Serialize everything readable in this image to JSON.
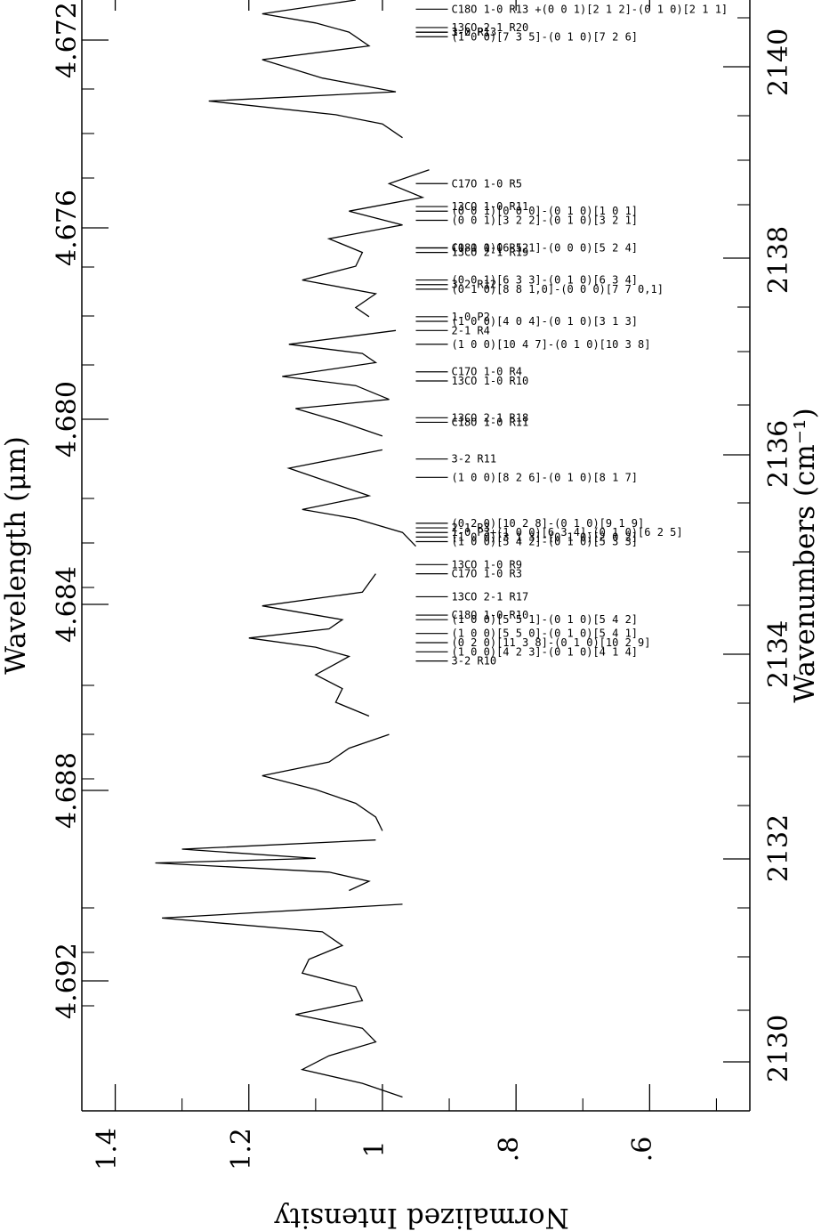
{
  "chart_data": {
    "type": "line",
    "orientation": "rotated-90",
    "title": "",
    "axes": {
      "wavelength": {
        "title": "Wavelength (μm)",
        "ticks": [
          "4.672",
          "4.676",
          "4.680",
          "4.684",
          "4.688",
          "4.692"
        ],
        "range": [
          4.6713,
          4.6955
        ]
      },
      "wavenumber": {
        "title": "Wavenumbers (cm⁻¹)",
        "ticks": [
          "2140",
          "2138",
          "2136",
          "2134",
          "2132",
          "2130"
        ]
      },
      "intensity": {
        "title": "Normalized Intensity",
        "ticks": [
          "1.4",
          "1.2",
          "1",
          ".8",
          ".6"
        ],
        "tick_values": [
          1.4,
          1.2,
          1.0,
          0.8,
          0.6
        ],
        "range": [
          1.45,
          0.45
        ]
      }
    },
    "series": [
      {
        "segment": 1,
        "points": [
          [
            4.6713,
            1.04
          ],
          [
            4.6716,
            1.18
          ],
          [
            4.6718,
            1.1
          ],
          [
            4.672,
            1.05
          ],
          [
            4.6723,
            1.02
          ],
          [
            4.6726,
            1.18
          ],
          [
            4.673,
            1.09
          ],
          [
            4.6733,
            0.98
          ],
          [
            4.6735,
            1.26
          ],
          [
            4.6738,
            1.07
          ],
          [
            4.674,
            1.0
          ],
          [
            4.6743,
            0.97
          ]
        ]
      },
      {
        "segment": 2,
        "points": [
          [
            4.675,
            0.93
          ],
          [
            4.6753,
            0.99
          ],
          [
            4.6756,
            0.94
          ],
          [
            4.6759,
            1.05
          ],
          [
            4.6762,
            0.97
          ],
          [
            4.6765,
            1.08
          ],
          [
            4.6768,
            1.03
          ],
          [
            4.6771,
            1.04
          ],
          [
            4.6774,
            1.12
          ],
          [
            4.6777,
            1.01
          ],
          [
            4.678,
            1.04
          ],
          [
            4.6782,
            1.02
          ]
        ]
      },
      {
        "segment": 3,
        "points": [
          [
            4.6785,
            0.98
          ],
          [
            4.6788,
            1.14
          ],
          [
            4.679,
            1.03
          ],
          [
            4.6792,
            1.01
          ],
          [
            4.6795,
            1.15
          ],
          [
            4.6797,
            1.04
          ],
          [
            4.68,
            0.99
          ],
          [
            4.6802,
            1.13
          ],
          [
            4.6805,
            1.06
          ],
          [
            4.6808,
            1.0
          ]
        ]
      },
      {
        "segment": 4,
        "points": [
          [
            4.6811,
            1.0
          ],
          [
            4.6815,
            1.14
          ],
          [
            4.6818,
            1.08
          ],
          [
            4.6821,
            1.02
          ],
          [
            4.6824,
            1.12
          ],
          [
            4.6826,
            1.04
          ],
          [
            4.6829,
            0.97
          ],
          [
            4.6832,
            0.95
          ]
        ]
      },
      {
        "segment": 5,
        "points": [
          [
            4.6838,
            1.01
          ],
          [
            4.6842,
            1.03
          ],
          [
            4.6845,
            1.18
          ],
          [
            4.6848,
            1.06
          ],
          [
            4.685,
            1.08
          ],
          [
            4.6852,
            1.2
          ],
          [
            4.6854,
            1.1
          ],
          [
            4.6856,
            1.05
          ],
          [
            4.686,
            1.1
          ],
          [
            4.6863,
            1.06
          ],
          [
            4.6866,
            1.07
          ],
          [
            4.6869,
            1.02
          ]
        ]
      },
      {
        "segment": 6,
        "points": [
          [
            4.6873,
            0.99
          ],
          [
            4.6876,
            1.05
          ],
          [
            4.6879,
            1.08
          ],
          [
            4.6882,
            1.18
          ],
          [
            4.6885,
            1.1
          ],
          [
            4.6888,
            1.04
          ],
          [
            4.6891,
            1.01
          ],
          [
            4.6894,
            1.0
          ]
        ]
      },
      {
        "segment": 7,
        "points": [
          [
            4.6896,
            1.01
          ],
          [
            4.6898,
            1.3
          ],
          [
            4.69,
            1.1
          ],
          [
            4.6901,
            1.34
          ],
          [
            4.6903,
            1.08
          ],
          [
            4.6905,
            1.02
          ],
          [
            4.6907,
            1.05
          ]
        ]
      },
      {
        "segment": 8,
        "points": [
          [
            4.691,
            0.97
          ],
          [
            4.6913,
            1.33
          ],
          [
            4.6916,
            1.09
          ],
          [
            4.6919,
            1.06
          ],
          [
            4.6922,
            1.11
          ],
          [
            4.6925,
            1.12
          ],
          [
            4.6928,
            1.04
          ],
          [
            4.6931,
            1.03
          ],
          [
            4.6934,
            1.13
          ],
          [
            4.6937,
            1.03
          ],
          [
            4.694,
            1.01
          ],
          [
            4.6943,
            1.08
          ],
          [
            4.6946,
            1.12
          ],
          [
            4.6949,
            1.03
          ],
          [
            4.6952,
            0.97
          ]
        ]
      }
    ],
    "line_identifications": [
      {
        "w": 4.6715,
        "label": "C18O 1-0 R13 +(0 0 1)[2 1 2]-(0 1 0)[2 1 1]"
      },
      {
        "w": 4.6719,
        "label": "13CO 2-1 R20"
      },
      {
        "w": 4.672,
        "label": "1-0 P1"
      },
      {
        "w": 4.672,
        "label": "3-2 R13"
      },
      {
        "w": 4.6721,
        "label": "(1 0 0)[7 3 5]-(0 1 0)[7 2 6]"
      },
      {
        "w": 4.6753,
        "label": "C17O 1-0 R5"
      },
      {
        "w": 4.6758,
        "label": "13CO 1-0 R11"
      },
      {
        "w": 4.6759,
        "label": "(0 0 1)[0 0 0]-(0 1 0)[1 0 1]"
      },
      {
        "w": 4.6761,
        "label": "(0 0 1)[3 2 2]-(0 1 0)[3 2 1]"
      },
      {
        "w": 4.6767,
        "label": "C18O 1-0 R12"
      },
      {
        "w": 4.6767,
        "label": "(0 1 0)[6 5 1]-(0 0 0)[5 2 4]"
      },
      {
        "w": 4.6768,
        "label": "13CO 2-1 R19"
      },
      {
        "w": 4.6774,
        "label": "(0 0 1)[6 3 3]-(0 1 0)[6 3 4]"
      },
      {
        "w": 4.6775,
        "label": "3-2 R12"
      },
      {
        "w": 4.6776,
        "label": "(0 1 0)[8 8 1,0]-(0 0 0)[7 7 0,1]"
      },
      {
        "w": 4.6782,
        "label": "1-0 P2"
      },
      {
        "w": 4.6783,
        "label": "(1 0 0)[4 0 4]-(0 1 0)[3 1 3]"
      },
      {
        "w": 4.6785,
        "label": "2-1 R4"
      },
      {
        "w": 4.6788,
        "label": "(1 0 0)[10 4 7]-(0 1 0)[10 3 8]"
      },
      {
        "w": 4.6794,
        "label": "C17O 1-0 R4"
      },
      {
        "w": 4.6796,
        "label": "13CO 1-0 R10"
      },
      {
        "w": 4.6804,
        "label": "13CO 2-1 R18"
      },
      {
        "w": 4.6805,
        "label": "C18O 1-0 R11"
      },
      {
        "w": 4.6813,
        "label": "3-2 R11"
      },
      {
        "w": 4.6817,
        "label": "(1 0 0)[8 2 6]-(0 1 0)[8 1 7]"
      },
      {
        "w": 4.6827,
        "label": "(0 2 0)[10 2 8]-(0 1 0)[9 1 9]"
      },
      {
        "w": 4.6828,
        "label": "2-1 R3"
      },
      {
        "w": 4.6829,
        "label": "1-0 P3+(1 0 0)[6 3 4]-(0 1 0)[6 2 5]"
      },
      {
        "w": 4.683,
        "label": "(1 0 0)[3 1 3]-(0 1 0)[2 0 2]"
      },
      {
        "w": 4.6831,
        "label": "(1 0 0)[5 4 2]-(0 1 0)[5 3 3]"
      },
      {
        "w": 4.6836,
        "label": "13CO 1-0 R9"
      },
      {
        "w": 4.6838,
        "label": "C17O 1-0 R3"
      },
      {
        "w": 4.6843,
        "label": "13CO 2-1 R17"
      },
      {
        "w": 4.6847,
        "label": "C18O 1-0 R10"
      },
      {
        "w": 4.6848,
        "label": "(1 0 0)[5 5 1]-(0 1 0)[5 4 2]"
      },
      {
        "w": 4.6851,
        "label": "(1 0 0)[5 5 0]-(0 1 0)[5 4 1]"
      },
      {
        "w": 4.6853,
        "label": "(0 2 0)[11 3 8]-(0 1 0)[10 2 9]"
      },
      {
        "w": 4.6855,
        "label": "(1 0 0)[4 2 3]-(0 1 0)[4 1 4]"
      },
      {
        "w": 4.6857,
        "label": "3-2 R10"
      }
    ]
  }
}
